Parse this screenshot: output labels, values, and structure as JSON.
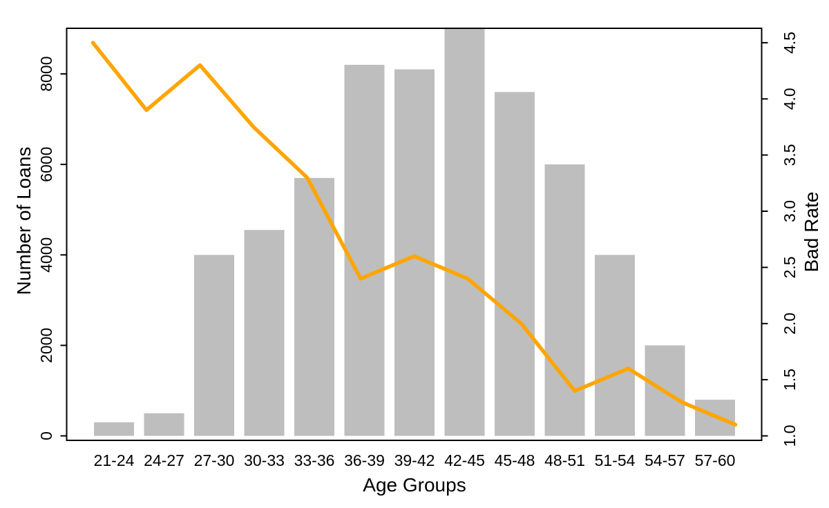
{
  "chart_data": {
    "type": "bar",
    "subtype": "bar+line dual-axis combo",
    "title": "",
    "categories": [
      "21-24",
      "24-27",
      "27-30",
      "30-33",
      "33-36",
      "36-39",
      "39-42",
      "42-45",
      "45-48",
      "48-51",
      "51-54",
      "54-57",
      "57-60"
    ],
    "series": [
      {
        "name": "Number of Loans",
        "type": "bar",
        "axis": "left",
        "color": "#BEBEBE",
        "values": [
          300,
          500,
          4000,
          4550,
          5700,
          8200,
          8100,
          9000,
          7600,
          6000,
          4000,
          2000,
          800
        ]
      },
      {
        "name": "Bad Rate",
        "type": "line",
        "axis": "right",
        "color": "#FFA500",
        "values": [
          4.5,
          3.9,
          4.3,
          3.75,
          3.3,
          2.4,
          2.6,
          2.4,
          2.0,
          1.4,
          1.6,
          1.3,
          1.1
        ]
      }
    ],
    "xlabel": "Age Groups",
    "ylabel_left": "Number of Loans",
    "ylabel_right": "Bad Rate",
    "left_axis": {
      "min": 0,
      "max": 9000,
      "ticks": [
        0,
        2000,
        4000,
        6000,
        8000
      ],
      "tick_labels": [
        "0",
        "2000",
        "4000",
        "6000",
        "8000"
      ]
    },
    "right_axis": {
      "min": 1.0,
      "max": 4.5,
      "ticks": [
        1.0,
        1.5,
        2.0,
        2.5,
        3.0,
        3.5,
        4.0,
        4.5
      ],
      "tick_labels": [
        "1.0",
        "1.5",
        "2.0",
        "2.5",
        "3.0",
        "3.5",
        "4.0",
        "4.5"
      ]
    },
    "grid": false,
    "legend": false,
    "background": "#FFFFFF",
    "frame_color": "#000000"
  }
}
